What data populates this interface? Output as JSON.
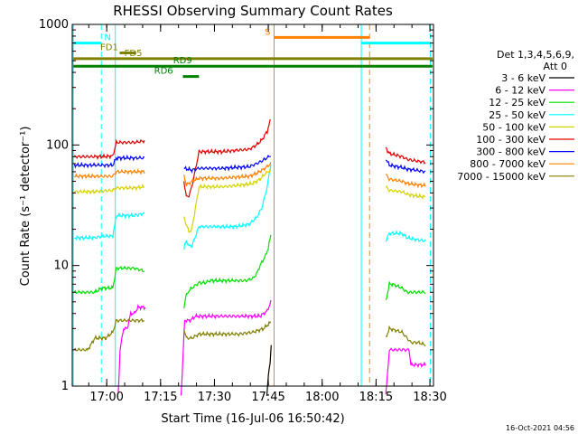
{
  "chart_data": {
    "type": "line",
    "title": "RHESSI Observing Summary Count Rates",
    "xlabel": "Start Time (16-Jul-06 16:50:42)",
    "ylabel": "Count Rate (s⁻¹ detector⁻¹)",
    "yscale": "log",
    "ylim": [
      1,
      1000
    ],
    "xlim": [
      -0.3,
      100.3
    ],
    "x_units": "minutes after 16:50:42",
    "x_ticks": [
      {
        "label": "17:00",
        "value": 9.3
      },
      {
        "label": "17:15",
        "value": 24.3
      },
      {
        "label": "17:30",
        "value": 39.3
      },
      {
        "label": "17:45",
        "value": 54.3
      },
      {
        "label": "18:00",
        "value": 69.3
      },
      {
        "label": "18:15",
        "value": 84.3
      },
      {
        "label": "18:30",
        "value": 99.3
      }
    ],
    "y_ticks": [
      {
        "label": "1",
        "value": 1
      },
      {
        "label": "10",
        "value": 10
      },
      {
        "label": "100",
        "value": 100
      },
      {
        "label": "1000",
        "value": 1000
      }
    ],
    "legend_header": [
      "Det 1,3,4,5,6,9,",
      "Att 0"
    ],
    "series": [
      {
        "name": "3 - 6 keV",
        "color": "#000000",
        "segments": [
          [
            [
              53.9,
              0.8
            ],
            [
              54.3,
              1.2
            ],
            [
              54.8,
              1.6
            ],
            [
              55.1,
              2.2
            ]
          ]
        ]
      },
      {
        "name": "6 - 12 keV",
        "color": "#ff00ff",
        "segments": [
          [
            [
              12.5,
              0.8
            ],
            [
              13.0,
              2.0
            ],
            [
              14.0,
              3.0
            ],
            [
              15.0,
              3.0
            ],
            [
              16.0,
              4.0
            ],
            [
              17.0,
              4.0
            ],
            [
              18.0,
              4.5
            ],
            [
              19.0,
              4.5
            ],
            [
              20.0,
              4.5
            ]
          ],
          [
            [
              30.0,
              0.8
            ],
            [
              31.0,
              3.5
            ],
            [
              32.5,
              3.5
            ],
            [
              34.0,
              3.8
            ],
            [
              40.0,
              3.8
            ],
            [
              47.0,
              3.8
            ],
            [
              52.0,
              3.8
            ],
            [
              54.0,
              4.2
            ],
            [
              55.0,
              5.0
            ]
          ],
          [
            [
              87.0,
              0.8
            ],
            [
              88.0,
              2.0
            ],
            [
              93.5,
              2.0
            ],
            [
              94.0,
              1.5
            ],
            [
              98.0,
              1.5
            ]
          ]
        ]
      },
      {
        "name": "12 - 25 keV",
        "color": "#00e000",
        "segments": [
          [
            [
              0.3,
              6.0
            ],
            [
              6.0,
              6.0
            ],
            [
              8.0,
              6.5
            ],
            [
              11.0,
              6.5
            ],
            [
              12.0,
              9.5
            ],
            [
              17.0,
              9.5
            ],
            [
              19.8,
              9.0
            ]
          ],
          [
            [
              30.8,
              4.5
            ],
            [
              31.3,
              5.5
            ],
            [
              32.2,
              6.2
            ],
            [
              33.0,
              6.5
            ],
            [
              35.0,
              7.2
            ],
            [
              36.8,
              7.2
            ],
            [
              38.0,
              7.5
            ],
            [
              41.5,
              7.5
            ],
            [
              45.0,
              7.5
            ],
            [
              48.0,
              7.5
            ],
            [
              50.0,
              7.8
            ],
            [
              51.0,
              8.5
            ],
            [
              52.0,
              10.0
            ],
            [
              53.5,
              12.0
            ],
            [
              54.3,
              14.0
            ],
            [
              55.0,
              18.0
            ]
          ],
          [
            [
              87.0,
              5.0
            ],
            [
              88.0,
              7.0
            ],
            [
              89.0,
              7.0
            ],
            [
              91.5,
              6.5
            ],
            [
              93.0,
              6.0
            ],
            [
              95.0,
              6.0
            ],
            [
              98.0,
              6.0
            ]
          ]
        ]
      },
      {
        "name": "25 - 50 keV",
        "color": "#00ffff",
        "segments": [
          [
            [
              0.3,
              17.0
            ],
            [
              6.0,
              17.0
            ],
            [
              8.0,
              17.5
            ],
            [
              11.0,
              17.5
            ],
            [
              12.0,
              26.0
            ],
            [
              17.0,
              26.0
            ],
            [
              19.8,
              27.0
            ]
          ],
          [
            [
              30.8,
              14.0
            ],
            [
              31.5,
              16.0
            ],
            [
              32.2,
              14.5
            ],
            [
              33.0,
              14.5
            ],
            [
              35.0,
              21.0
            ],
            [
              41.5,
              21.0
            ],
            [
              45.0,
              21.0
            ],
            [
              49.0,
              22.0
            ],
            [
              51.0,
              25.0
            ],
            [
              52.5,
              30.0
            ],
            [
              54.0,
              45.0
            ],
            [
              55.0,
              70.0
            ]
          ],
          [
            [
              87.0,
              16.0
            ],
            [
              88.0,
              18.5
            ],
            [
              91.5,
              18.5
            ],
            [
              93.0,
              17.0
            ],
            [
              95.0,
              16.5
            ],
            [
              98.0,
              16.0
            ]
          ]
        ]
      },
      {
        "name": "50 - 100 keV",
        "color": "#d4d400",
        "segments": [
          [
            [
              0.3,
              41.0
            ],
            [
              6.0,
              41.0
            ],
            [
              8.0,
              41.5
            ],
            [
              11.0,
              42.0
            ],
            [
              12.0,
              44.0
            ],
            [
              17.0,
              44.0
            ],
            [
              19.8,
              45.0
            ]
          ],
          [
            [
              30.8,
              25.0
            ],
            [
              32.2,
              19.0
            ],
            [
              33.0,
              20.0
            ],
            [
              35.0,
              45.0
            ],
            [
              41.5,
              45.0
            ],
            [
              45.0,
              46.0
            ],
            [
              48.0,
              47.0
            ],
            [
              50.0,
              48.0
            ],
            [
              52.0,
              52.0
            ],
            [
              53.5,
              58.0
            ],
            [
              55.0,
              62.0
            ]
          ],
          [
            [
              87.0,
              45.0
            ],
            [
              88.0,
              42.0
            ],
            [
              91.5,
              41.0
            ],
            [
              93.0,
              39.0
            ],
            [
              95.0,
              38.0
            ],
            [
              98.0,
              37.0
            ]
          ]
        ]
      },
      {
        "name": "100 - 300 keV",
        "color": "#e00000",
        "segments": [
          [
            [
              0.3,
              80.0
            ],
            [
              6.0,
              80.0
            ],
            [
              8.0,
              80.0
            ],
            [
              11.0,
              81.0
            ],
            [
              12.0,
              105.0
            ],
            [
              17.0,
              105.0
            ],
            [
              19.8,
              108.0
            ]
          ],
          [
            [
              30.8,
              50.0
            ],
            [
              31.5,
              37.0
            ],
            [
              32.2,
              38.0
            ],
            [
              33.0,
              45.0
            ],
            [
              35.0,
              88.0
            ],
            [
              41.5,
              88.0
            ],
            [
              45.0,
              90.0
            ],
            [
              49.0,
              92.0
            ],
            [
              51.0,
              100.0
            ],
            [
              52.5,
              110.0
            ],
            [
              54.0,
              130.0
            ],
            [
              55.0,
              165.0
            ]
          ],
          [
            [
              87.0,
              95.0
            ],
            [
              88.0,
              85.0
            ],
            [
              91.5,
              80.0
            ],
            [
              93.0,
              76.0
            ],
            [
              95.0,
              74.0
            ],
            [
              98.0,
              72.0
            ]
          ]
        ]
      },
      {
        "name": "300 - 800 keV",
        "color": "#0000ff",
        "segments": [
          [
            [
              0.3,
              68.0
            ],
            [
              6.0,
              68.0
            ],
            [
              8.0,
              68.0
            ],
            [
              11.0,
              68.0
            ],
            [
              12.0,
              78.0
            ],
            [
              17.0,
              78.0
            ],
            [
              19.8,
              78.0
            ]
          ],
          [
            [
              30.8,
              64.0
            ],
            [
              33.0,
              62.0
            ],
            [
              35.0,
              64.0
            ],
            [
              41.5,
              64.0
            ],
            [
              45.0,
              65.0
            ],
            [
              49.0,
              66.0
            ],
            [
              51.0,
              70.0
            ],
            [
              53.0,
              75.0
            ],
            [
              55.0,
              82.0
            ]
          ],
          [
            [
              87.0,
              77.0
            ],
            [
              88.0,
              68.0
            ],
            [
              91.5,
              65.0
            ],
            [
              93.0,
              63.0
            ],
            [
              95.0,
              62.0
            ],
            [
              98.0,
              60.0
            ]
          ]
        ]
      },
      {
        "name": "800 - 7000 keV",
        "color": "#ff8000",
        "segments": [
          [
            [
              0.3,
              55.0
            ],
            [
              6.0,
              55.0
            ],
            [
              8.0,
              55.0
            ],
            [
              11.0,
              55.0
            ],
            [
              12.0,
              60.0
            ],
            [
              17.0,
              60.0
            ],
            [
              19.8,
              60.0
            ]
          ],
          [
            [
              30.8,
              55.0
            ],
            [
              31.5,
              47.0
            ],
            [
              32.2,
              48.0
            ],
            [
              33.0,
              50.0
            ],
            [
              35.0,
              53.0
            ],
            [
              41.5,
              53.0
            ],
            [
              45.0,
              54.0
            ],
            [
              49.0,
              55.0
            ],
            [
              51.0,
              58.0
            ],
            [
              53.0,
              63.0
            ],
            [
              55.0,
              70.0
            ]
          ],
          [
            [
              87.0,
              57.0
            ],
            [
              88.0,
              52.0
            ],
            [
              91.5,
              50.0
            ],
            [
              93.0,
              48.0
            ],
            [
              95.0,
              47.0
            ],
            [
              98.0,
              46.0
            ]
          ]
        ]
      },
      {
        "name": "7000 - 15000 keV",
        "color": "#808000",
        "segments": [
          [
            [
              0.3,
              2.0
            ],
            [
              4.0,
              2.0
            ],
            [
              6.0,
              2.5
            ],
            [
              9.0,
              2.5
            ],
            [
              11.0,
              2.8
            ],
            [
              12.0,
              3.5
            ],
            [
              15.0,
              3.5
            ],
            [
              17.0,
              3.5
            ],
            [
              19.8,
              3.5
            ]
          ],
          [
            [
              30.8,
              3.0
            ],
            [
              31.5,
              2.5
            ],
            [
              33.0,
              2.5
            ],
            [
              35.0,
              2.7
            ],
            [
              40.0,
              2.7
            ],
            [
              46.0,
              2.7
            ],
            [
              50.0,
              2.8
            ],
            [
              53.0,
              3.0
            ],
            [
              55.0,
              3.4
            ]
          ],
          [
            [
              87.0,
              2.5
            ],
            [
              88.0,
              3.0
            ],
            [
              91.5,
              2.8
            ],
            [
              94.0,
              2.3
            ],
            [
              96.0,
              2.3
            ],
            [
              98.0,
              2.2
            ]
          ]
        ]
      }
    ],
    "vertical_markers": [
      {
        "value": 0.0,
        "color": "#00ffff",
        "style": "solid"
      },
      {
        "value": 7.8,
        "color": "#00ffff",
        "style": "dashed"
      },
      {
        "value": 11.7,
        "color": "#00ffff",
        "style": "solid"
      },
      {
        "value": 55.9,
        "color": "#ff8000",
        "style": "solid"
      },
      {
        "value": 80.2,
        "color": "#00ffff",
        "style": "solid"
      },
      {
        "value": 82.5,
        "color": "#ff8000",
        "style": "dashed"
      },
      {
        "value": 99.4,
        "color": "#00ffff",
        "style": "dashed"
      }
    ],
    "state_bars": [
      {
        "label": "N",
        "color": "#00ffff",
        "value": 700,
        "ranges": [
          [
            0.0,
            7.8
          ],
          [
            80.2,
            99.4
          ]
        ],
        "label_at": 8.6
      },
      {
        "label": "S",
        "color": "#ff8000",
        "value": 780,
        "ranges": [
          [
            55.9,
            82.5
          ]
        ],
        "label_at": 53.3
      },
      {
        "label": "FD1",
        "color": "#808000",
        "value": 580,
        "ranges": [
          [
            12.9,
            17.5
          ]
        ],
        "label_at": 7.5
      },
      {
        "label": "FD5",
        "color": "#808000",
        "value": 520,
        "ranges": [
          [
            0.0,
            100.0
          ]
        ],
        "label_at": 14.2
      },
      {
        "label": "RD9",
        "color": "#008000",
        "value": 450,
        "ranges": [
          [
            0.0,
            100.0
          ]
        ],
        "label_at": 27.8
      },
      {
        "label": "RD6",
        "color": "#008000",
        "value": 370,
        "ranges": [
          [
            30.5,
            35.0
          ]
        ],
        "label_at": 22.5
      }
    ],
    "timestamp": "16-Oct-2021 04:56",
    "legend_position": "right"
  }
}
